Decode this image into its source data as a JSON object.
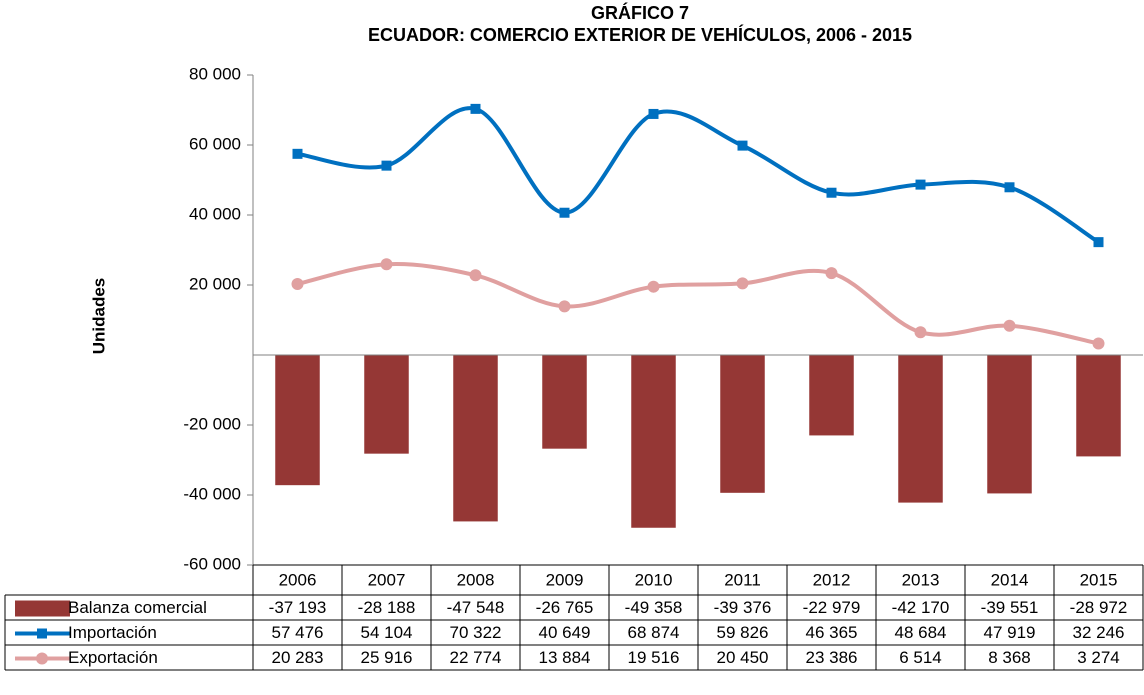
{
  "chart_data": {
    "type": "bar-line",
    "title": "GRÁFICO 7",
    "subtitle": "ECUADOR: COMERCIO EXTERIOR DE VEHÍCULOS, 2006 - 2015",
    "y_label": "Unidades",
    "categories": [
      "2006",
      "2007",
      "2008",
      "2009",
      "2010",
      "2011",
      "2012",
      "2013",
      "2014",
      "2015"
    ],
    "series": [
      {
        "name": "Balanza comercial",
        "type": "bar",
        "color": "#953735",
        "values": [
          -37193,
          -28188,
          -47548,
          -26765,
          -49358,
          -39376,
          -22979,
          -42170,
          -39551,
          -28972
        ],
        "value_labels": [
          "-37 193",
          "-28 188",
          "-47 548",
          "-26 765",
          "-49 358",
          "-39 376",
          "-22 979",
          "-42 170",
          "-39 551",
          "-28 972"
        ]
      },
      {
        "name": "Importación",
        "type": "line",
        "marker": "square",
        "color": "#0070c0",
        "values": [
          57476,
          54104,
          70322,
          40649,
          68874,
          59826,
          46365,
          48684,
          47919,
          32246
        ],
        "value_labels": [
          "57 476",
          "54 104",
          "70 322",
          "40 649",
          "68 874",
          "59 826",
          "46 365",
          "48 684",
          "47 919",
          "32 246"
        ]
      },
      {
        "name": "Exportación",
        "type": "line",
        "marker": "circle",
        "color": "#e0a0a0",
        "values": [
          20283,
          25916,
          22774,
          13884,
          19516,
          20450,
          23386,
          6514,
          8368,
          3274
        ],
        "value_labels": [
          "20 283",
          "25 916",
          "22 774",
          "13 884",
          "19 516",
          "20 450",
          "23 386",
          "6 514",
          "8 368",
          "3 274"
        ]
      }
    ],
    "ylim": [
      -60000,
      80000
    ],
    "yticks": [
      {
        "value": 80000,
        "label": "80 000"
      },
      {
        "value": 60000,
        "label": "60 000"
      },
      {
        "value": 40000,
        "label": "40 000"
      },
      {
        "value": 20000,
        "label": "20 000"
      },
      {
        "value": -20000,
        "label": "-20 000"
      },
      {
        "value": -40000,
        "label": "-40 000"
      },
      {
        "value": -60000,
        "label": "-60 000"
      }
    ],
    "grid": false
  }
}
